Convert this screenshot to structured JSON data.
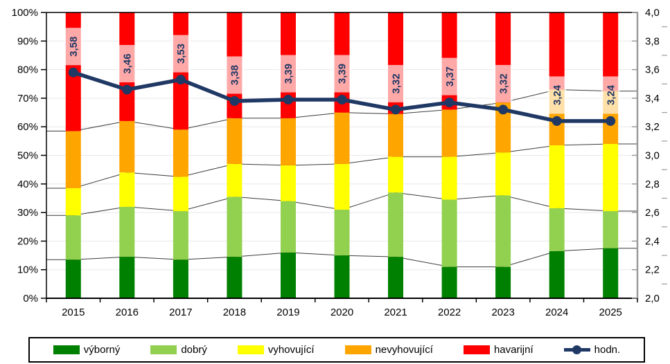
{
  "chart_data": {
    "type": "bar",
    "subtype": "stacked-percent-with-line",
    "categories": [
      "2015",
      "2016",
      "2017",
      "2018",
      "2019",
      "2020",
      "2021",
      "2022",
      "2023",
      "2024",
      "2025"
    ],
    "series": [
      {
        "key": "vyborny",
        "name": "výborný",
        "color": "#008000",
        "values": [
          13.5,
          14.5,
          13.5,
          14.5,
          16.0,
          15.0,
          14.5,
          11.0,
          11.0,
          16.5,
          17.5
        ]
      },
      {
        "key": "dobry",
        "name": "dobrý",
        "color": "#92D050",
        "values": [
          15.5,
          17.5,
          17.0,
          21.0,
          18.0,
          16.0,
          22.5,
          23.5,
          25.0,
          15.0,
          13.0
        ]
      },
      {
        "key": "vyhovujici",
        "name": "vyhovující",
        "color": "#FFFF00",
        "values": [
          9.5,
          12.0,
          12.0,
          11.5,
          12.5,
          16.0,
          12.5,
          15.0,
          15.0,
          22.0,
          23.5
        ]
      },
      {
        "key": "nevyhovujici",
        "name": "nevyhovující",
        "color": "#FFA500",
        "values": [
          20.0,
          18.0,
          16.5,
          16.0,
          16.5,
          18.0,
          15.0,
          16.5,
          17.5,
          19.5,
          18.5
        ]
      },
      {
        "key": "havarijni",
        "name": "havarijní",
        "color": "#FF0000",
        "values": [
          41.5,
          38.0,
          41.0,
          37.0,
          37.0,
          35.0,
          35.5,
          34.0,
          31.5,
          27.0,
          27.5
        ]
      }
    ],
    "line_series": {
      "key": "hodn",
      "name": "hodn.",
      "color": "#1F3864",
      "axis": "right",
      "values": [
        3.58,
        3.46,
        3.53,
        3.38,
        3.39,
        3.39,
        3.32,
        3.37,
        3.32,
        3.24,
        3.24
      ],
      "labels": [
        "3,58",
        "3,46",
        "3,53",
        "3,38",
        "3,39",
        "3,39",
        "3,32",
        "3,37",
        "3,32",
        "3,24",
        "3,24"
      ],
      "label_background": "rgba(255,255,255,0.66)"
    },
    "left_axis": {
      "min": 0,
      "max": 100,
      "ticks": [
        "0%",
        "10%",
        "20%",
        "30%",
        "40%",
        "50%",
        "60%",
        "70%",
        "80%",
        "90%",
        "100%"
      ]
    },
    "right_axis": {
      "min": 2.0,
      "max": 4.0,
      "ticks": [
        "2,0",
        "2,2",
        "2,4",
        "2,6",
        "2,8",
        "3,0",
        "3,2",
        "3,4",
        "3,6",
        "3,8",
        "4,0"
      ],
      "minor_step": 0.1
    },
    "grid": true,
    "connector_lines": true,
    "legend_position": "bottom"
  },
  "legend": {
    "items": [
      {
        "key": "vyborny",
        "label": "výborný",
        "color": "#008000",
        "type": "box"
      },
      {
        "key": "dobry",
        "label": "dobrý",
        "color": "#92D050",
        "type": "box"
      },
      {
        "key": "vyhovujici",
        "label": "vyhovující",
        "color": "#FFFF00",
        "type": "box"
      },
      {
        "key": "nevyhovujici",
        "label": "nevyhovující",
        "color": "#FFA500",
        "type": "box"
      },
      {
        "key": "havarijni",
        "label": "havarijní",
        "color": "#FF0000",
        "type": "box"
      },
      {
        "key": "hodn",
        "label": "hodn.",
        "color": "#1F3864",
        "type": "line"
      }
    ]
  },
  "colors": {
    "axis_black": "#000000",
    "axis_gray": "#9a9a9a",
    "gridline": "#e8e8e8",
    "connector": "#3a3a3a",
    "text": "#000000"
  }
}
